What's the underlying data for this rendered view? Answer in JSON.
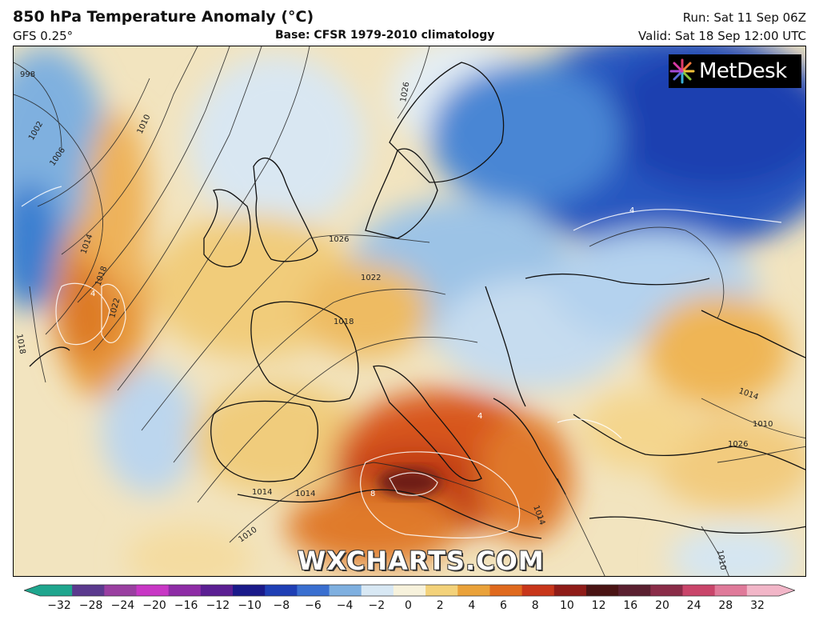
{
  "header": {
    "title": "850 hPa Temperature Anomaly (°C)",
    "model": "GFS 0.25°",
    "base": "Base: CFSR 1979-2010 climatology",
    "run": "Run: Sat 11 Sep 06Z",
    "valid": "Valid: Sat 18 Sep 12:00 UTC"
  },
  "branding": {
    "logo_text": "MetDesk",
    "watermark": "WXCHARTS.COM"
  },
  "map": {
    "region": "Europe",
    "isobar_labels": [
      "998",
      "1002",
      "1006",
      "1010",
      "1014",
      "1018",
      "1022",
      "1018",
      "1026",
      "1026",
      "1022",
      "1018",
      "1014",
      "1014",
      "1010",
      "1014",
      "1014",
      "1026",
      "1010",
      "1010"
    ],
    "anomaly_contour_labels": [
      "4",
      "4",
      "4",
      "8"
    ]
  },
  "colorbar": {
    "ticks": [
      "−32",
      "−28",
      "−24",
      "−20",
      "−16",
      "−12",
      "−10",
      "−8",
      "−6",
      "−4",
      "−2",
      "0",
      "2",
      "4",
      "6",
      "8",
      "10",
      "12",
      "16",
      "20",
      "24",
      "28",
      "32"
    ],
    "colors": [
      "#1fa68e",
      "#5b3a8e",
      "#9a3fa1",
      "#c837c5",
      "#8e2ca6",
      "#5b1f93",
      "#1a1a8a",
      "#1f3fb5",
      "#3a6fd0",
      "#7fb0e0",
      "#d8e8f4",
      "#f7f2dc",
      "#f3d27a",
      "#eaa23a",
      "#e06a1e",
      "#c8361a",
      "#8f1c18",
      "#4a1414",
      "#5a2030",
      "#8a2c48",
      "#c9456a",
      "#e07a9a",
      "#f2b6c8"
    ]
  },
  "colors": {
    "cold": "#1f4fb8",
    "cool": "#cfe3f2",
    "warm": "#f0c56a",
    "hot": "#d8561e",
    "very_hot": "#a82a14"
  }
}
